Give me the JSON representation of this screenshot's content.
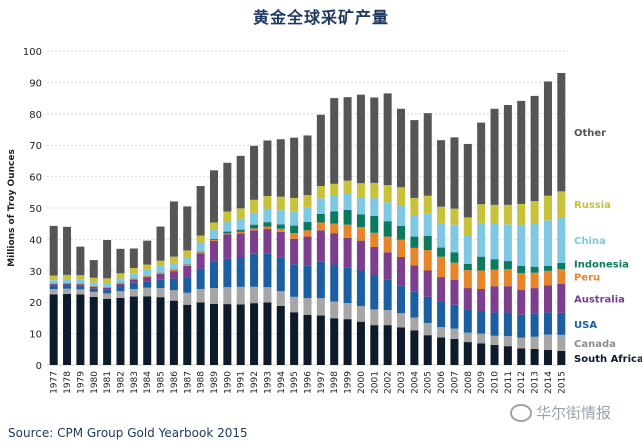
{
  "page": {
    "title": "黄金全球采矿产量",
    "source": "Source: CPM Group Gold Yearbook 2015",
    "watermark": "华尔街情报"
  },
  "chart_data": {
    "type": "bar",
    "stacked": true,
    "ylabel": "Millions of Troy Ounces",
    "ylim": [
      0,
      100
    ],
    "yticks": [
      0,
      10,
      20,
      30,
      40,
      50,
      60,
      70,
      80,
      90,
      100
    ],
    "grid": true,
    "categories": [
      "1977",
      "1978",
      "1979",
      "1980",
      "1981",
      "1982",
      "1983",
      "1984",
      "1985",
      "1986",
      "1987",
      "1988",
      "1989",
      "1990",
      "1991",
      "1992",
      "1993",
      "1994",
      "1995",
      "1996",
      "1997",
      "1998",
      "1999",
      "2000",
      "2001",
      "2002",
      "2003",
      "2004",
      "2005",
      "2006",
      "2007",
      "2008",
      "2009",
      "2010",
      "2011",
      "2012",
      "2013",
      "2014",
      "2015"
    ],
    "series": [
      {
        "name": "South Africa",
        "color": "#0d1b2a",
        "values": [
          22.5,
          22.6,
          22.5,
          21.7,
          21.1,
          21.4,
          21.8,
          21.9,
          21.6,
          20.5,
          19.2,
          19.9,
          19.5,
          19.4,
          19.3,
          19.7,
          19.9,
          18.8,
          16.8,
          16.0,
          15.8,
          14.9,
          14.6,
          13.8,
          12.7,
          12.7,
          12.0,
          11.0,
          9.5,
          8.8,
          8.3,
          7.3,
          6.9,
          6.4,
          6.0,
          5.3,
          5.1,
          4.8,
          4.5
        ]
      },
      {
        "name": "Canada",
        "color": "#a6a6a6",
        "values": [
          1.7,
          1.7,
          1.6,
          1.6,
          1.7,
          2.1,
          2.4,
          2.7,
          2.9,
          3.3,
          3.8,
          4.3,
          5.0,
          5.4,
          5.6,
          5.2,
          4.9,
          4.7,
          4.9,
          5.3,
          5.5,
          5.3,
          5.1,
          5.0,
          5.0,
          4.8,
          4.5,
          4.1,
          3.9,
          3.3,
          3.3,
          3.0,
          3.1,
          2.9,
          3.2,
          3.4,
          3.9,
          4.9,
          5.1
        ]
      },
      {
        "name": "USA",
        "color": "#1b5fa0",
        "values": [
          1.0,
          1.0,
          1.0,
          1.0,
          1.2,
          1.5,
          2.0,
          2.1,
          2.6,
          3.7,
          5.0,
          6.5,
          8.5,
          9.0,
          9.5,
          10.5,
          10.6,
          10.6,
          10.4,
          10.3,
          11.6,
          11.8,
          11.3,
          11.3,
          10.8,
          9.6,
          8.9,
          8.2,
          8.3,
          8.1,
          7.6,
          7.4,
          7.2,
          7.4,
          7.5,
          7.3,
          7.3,
          7.0,
          7.0
        ]
      },
      {
        "name": "Australia",
        "color": "#7b3f8e",
        "values": [
          0.6,
          0.6,
          0.6,
          0.6,
          0.6,
          0.9,
          1.0,
          1.3,
          1.9,
          2.4,
          3.6,
          4.9,
          6.5,
          7.8,
          7.5,
          7.5,
          7.9,
          8.3,
          8.1,
          9.3,
          10.0,
          10.0,
          9.5,
          9.5,
          9.1,
          8.8,
          9.0,
          8.4,
          8.4,
          7.8,
          7.9,
          6.8,
          7.0,
          8.4,
          8.4,
          8.0,
          8.2,
          8.7,
          9.2
        ]
      },
      {
        "name": "Peru",
        "color": "#e8842a",
        "values": [
          0.1,
          0.1,
          0.2,
          0.2,
          0.2,
          0.3,
          0.3,
          0.3,
          0.4,
          0.4,
          0.4,
          0.3,
          0.3,
          0.3,
          0.5,
          0.6,
          0.8,
          1.0,
          1.8,
          2.0,
          2.5,
          3.0,
          4.2,
          4.3,
          4.5,
          5.0,
          5.5,
          5.6,
          6.5,
          6.5,
          5.5,
          5.7,
          5.9,
          5.3,
          5.4,
          5.3,
          4.9,
          4.6,
          4.7
        ]
      },
      {
        "name": "Indonesia",
        "color": "#0b7a5e",
        "values": [
          0.1,
          0.1,
          0.1,
          0.1,
          0.1,
          0.1,
          0.1,
          0.1,
          0.1,
          0.1,
          0.1,
          0.2,
          0.3,
          0.6,
          0.7,
          1.2,
          1.4,
          1.4,
          2.4,
          2.7,
          2.7,
          3.9,
          4.7,
          4.1,
          5.4,
          4.9,
          4.4,
          3.6,
          4.5,
          2.9,
          3.3,
          2.0,
          4.4,
          3.3,
          2.6,
          2.3,
          1.9,
          1.6,
          2.0
        ]
      },
      {
        "name": "China",
        "color": "#7ec8e3",
        "values": [
          1.0,
          1.1,
          1.1,
          1.1,
          1.2,
          1.3,
          1.6,
          1.9,
          2.0,
          2.1,
          2.3,
          2.9,
          3.0,
          3.2,
          3.5,
          3.8,
          4.3,
          4.5,
          4.6,
          4.6,
          5.0,
          5.0,
          5.2,
          5.3,
          5.6,
          6.0,
          6.5,
          6.9,
          7.2,
          7.7,
          8.8,
          9.2,
          10.5,
          11.2,
          11.7,
          13.1,
          13.6,
          14.5,
          14.6
        ]
      },
      {
        "name": "Russia",
        "color": "#c8c23a",
        "values": [
          1.5,
          1.5,
          1.5,
          1.5,
          1.5,
          1.6,
          1.7,
          1.7,
          1.7,
          2.0,
          2.1,
          2.2,
          2.3,
          3.2,
          3.3,
          4.1,
          4.0,
          4.3,
          4.2,
          3.9,
          3.9,
          3.8,
          4.1,
          4.6,
          4.9,
          5.5,
          5.8,
          5.4,
          5.6,
          5.3,
          5.1,
          5.6,
          6.2,
          6.1,
          6.2,
          6.6,
          7.3,
          7.8,
          8.2
        ]
      },
      {
        "name": "Other",
        "color": "#555555",
        "values": [
          15.8,
          15.3,
          9.1,
          5.6,
          12.2,
          7.8,
          6.2,
          7.6,
          10.9,
          17.6,
          14.0,
          15.8,
          16.6,
          15.5,
          16.7,
          17.2,
          17.7,
          18.3,
          19.2,
          19.0,
          22.7,
          27.3,
          26.6,
          28.2,
          27.2,
          29.2,
          25.0,
          24.8,
          26.3,
          21.2,
          22.7,
          23.4,
          26.0,
          30.6,
          31.8,
          32.8,
          33.5,
          36.4,
          37.7
        ]
      }
    ]
  }
}
